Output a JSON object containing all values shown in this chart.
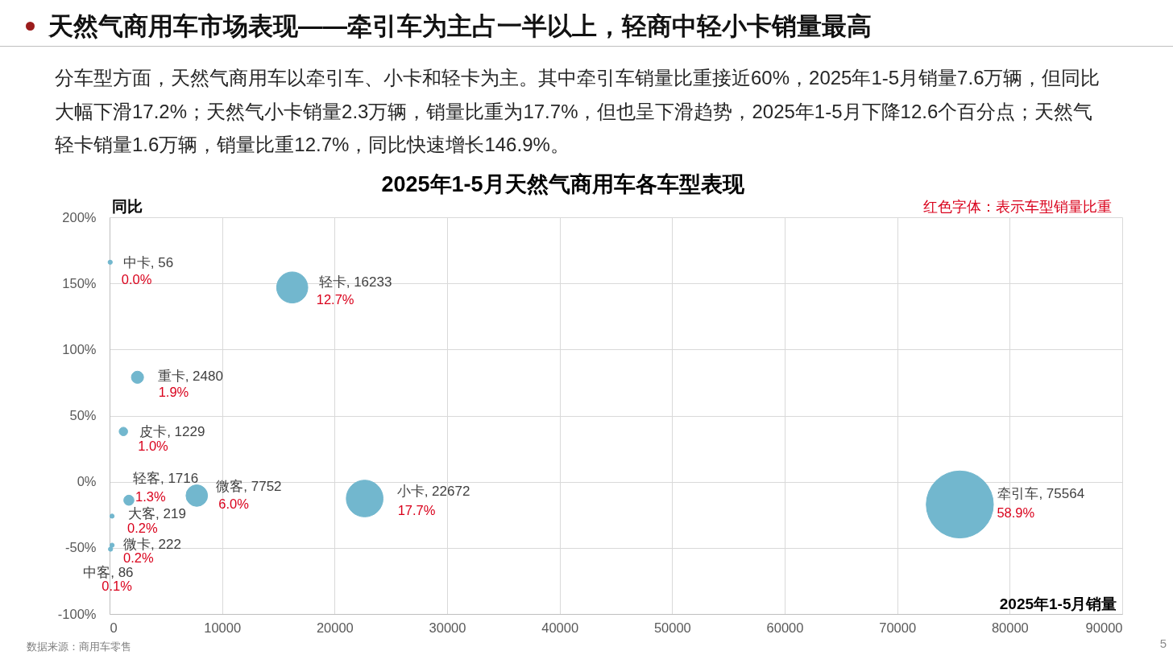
{
  "chart_data": {
    "type": "bubble",
    "title": "2025年1-5月天然气商用车各车型表现",
    "xlabel": "2025年1-5月销量",
    "ylabel": "同比",
    "x": [
      56,
      16233,
      2480,
      1229,
      1716,
      7752,
      22672,
      75564,
      219,
      222,
      86
    ],
    "values": [
      166,
      146.9,
      79,
      38,
      -14,
      -10.5,
      -12.7,
      -17.2,
      -26,
      -48,
      -51
    ],
    "sizes": [
      null,
      0.215,
      0.033,
      0.016,
      0.023,
      0.103,
      0.3,
      1,
      null,
      null,
      null
    ],
    "color": "#72b7ce",
    "marker": "circle",
    "grid": true,
    "xlim": [
      0,
      90000
    ],
    "xticks": [
      0,
      10000,
      20000,
      30000,
      40000,
      50000,
      60000,
      70000,
      80000,
      90000
    ],
    "ylim": [
      -100,
      200
    ],
    "yticks": [
      {
        "value": -100,
        "label": "-100%"
      },
      {
        "value": -50,
        "label": "-50%"
      },
      {
        "value": 0,
        "label": "0%"
      },
      {
        "value": 50,
        "label": "50%"
      },
      {
        "value": 100,
        "label": "100%"
      },
      {
        "value": 150,
        "label": "150%"
      },
      {
        "value": 200,
        "label": "200%"
      }
    ],
    "annotations": [
      "天然气商用车市场表现——牵引车为主占一半以上，轻商中轻小卡销量最高",
      "分车型方面，天然气商用车以牵引车、小卡和轻卡为主。其中牵引车销量比重接近60%，2025年1-5月销量7.6万辆，但同比大幅下滑17.2%；天然气小卡销量2.3万辆，销量比重为17.7%，但也呈下滑趋势，2025年1-5月下降12.6个百分点；天然气轻卡销量1.6万辆，销量比重12.7%，同比快速增长146.9%。",
      "红色字体：表示车型销量比重",
      "数据来源：商用车零售",
      "5",
      {
        "text": "中卡, 56",
        "x": 56,
        "y": 166
      },
      {
        "text": "0.0%",
        "x": 56,
        "y": 166
      },
      {
        "text": "轻卡, 16233",
        "x": 16233,
        "y": 146.9
      },
      {
        "text": "12.7%",
        "x": 16233,
        "y": 146.9
      },
      {
        "text": "重卡, 2480",
        "x": 2480,
        "y": 79
      },
      {
        "text": "1.9%",
        "x": 2480,
        "y": 79
      },
      {
        "text": "皮卡, 1229",
        "x": 1229,
        "y": 38
      },
      {
        "text": "1.0%",
        "x": 1229,
        "y": 38
      },
      {
        "text": "轻客, 1716",
        "x": 1716,
        "y": -14
      },
      {
        "text": "1.3%",
        "x": 1716,
        "y": -14
      },
      {
        "text": "微客, 7752",
        "x": 7752,
        "y": -10.5
      },
      {
        "text": "6.0%",
        "x": 7752,
        "y": -10.5
      },
      {
        "text": "小卡, 22672",
        "x": 22672,
        "y": -12.7
      },
      {
        "text": "17.7%",
        "x": 22672,
        "y": -12.7
      },
      {
        "text": "牵引车, 75564",
        "x": 75564,
        "y": -17.2
      },
      {
        "text": "58.9%",
        "x": 75564,
        "y": -17.2
      },
      {
        "text": "大客, 219",
        "x": 219,
        "y": -26
      },
      {
        "text": "0.2%",
        "x": 219,
        "y": -26
      },
      {
        "text": "微卡, 222",
        "x": 222,
        "y": -48
      },
      {
        "text": "0.2%",
        "x": 222,
        "y": -48
      },
      {
        "text": "中客, 86",
        "x": 86,
        "y": -51
      },
      {
        "text": "0.1%",
        "x": 86,
        "y": -51
      }
    ]
  }
}
